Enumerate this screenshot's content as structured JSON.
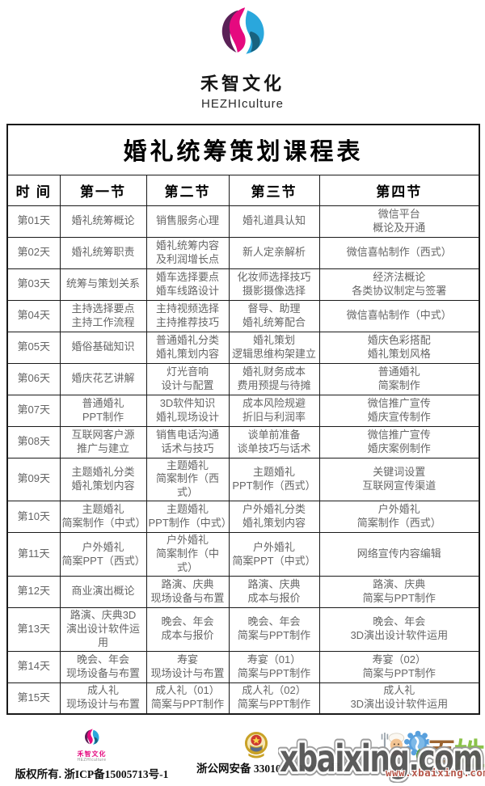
{
  "brand": {
    "name_cn": "禾智文化",
    "name_en": "HEZHIculture"
  },
  "table": {
    "title": "婚礼统筹策划课程表",
    "headers": [
      "时 间",
      "第一节",
      "第二节",
      "第三节",
      "第四节"
    ],
    "rows": [
      {
        "day": "第01天",
        "cells": [
          "婚礼统筹概论",
          "销售服务心理",
          "婚礼道具认知",
          "微信平台\n概论及开通"
        ]
      },
      {
        "day": "第02天",
        "cells": [
          "婚礼统筹职责",
          "婚礼统筹内容\n及利润增长点",
          "新人定亲解析",
          "微信喜帖制作（西式）"
        ]
      },
      {
        "day": "第03天",
        "cells": [
          "统筹与策划关系",
          "婚车选择要点\n婚车线路设计",
          "化妆师选择技巧\n摄影摄像选择",
          "经济法概论\n各类协议制定与签署"
        ]
      },
      {
        "day": "第04天",
        "cells": [
          "主持选择要点\n主持工作流程",
          "主持视频选择\n主持推荐技巧",
          "督导、助理\n婚礼统筹配合",
          "微信喜帖制作（中式）"
        ]
      },
      {
        "day": "第05天",
        "cells": [
          "婚俗基础知识",
          "普通婚礼分类\n婚礼策划内容",
          "婚礼策划\n逻辑思维构架建立",
          "婚庆色彩搭配\n婚礼策划风格"
        ]
      },
      {
        "day": "第06天",
        "cells": [
          "婚庆花艺讲解",
          "灯光音响\n设计与配置",
          "婚礼财务成本\n费用预提与待摊",
          "普通婚礼\n简案制作"
        ]
      },
      {
        "day": "第07天",
        "cells": [
          "普通婚礼\nPPT制作",
          "3D软件知识\n婚礼现场设计",
          "成本风险规避\n折旧与利润率",
          "微信推广宣传\n婚庆宣传制作"
        ]
      },
      {
        "day": "第08天",
        "cells": [
          "互联网客户源\n推广与建立",
          "销售电话沟通\n话术与技巧",
          "谈单前准备\n谈单技巧与话术",
          "微信推广宣传\n婚庆案例制作"
        ]
      },
      {
        "day": "第09天",
        "cells": [
          "主题婚礼分类\n婚礼策划内容",
          "主题婚礼\n简案制作（西式）",
          "主题婚礼\nPPT制作（西式）",
          "关键词设置\n互联网宣传渠道"
        ]
      },
      {
        "day": "第10天",
        "cells": [
          "主题婚礼\n简案制作（中式）",
          "主题婚礼\nPPT制作（中式）",
          "户外婚礼分类\n婚礼策划内容",
          "户外婚礼\n简案制作（西式）"
        ]
      },
      {
        "day": "第11天",
        "cells": [
          "户外婚礼\n简案PPT（西式）",
          "户外婚礼\n简案制作（中式）",
          "户外婚礼\n简案PPT（中式）",
          "网络宣传内容编辑"
        ]
      },
      {
        "day": "第12天",
        "cells": [
          "商业演出概论",
          "路演、庆典\n现场设备与布置",
          "路演、庆典\n成本与报价",
          "路演、庆典\n简案与PPT制作"
        ]
      },
      {
        "day": "第13天",
        "cells": [
          "路演、庆典3D\n演出设计软件运用",
          "晚会、年会\n成本与报价",
          "晚会、年会\n简案与PPT制作",
          "晚会、年会\n3D演出设计软件运用"
        ]
      },
      {
        "day": "第14天",
        "cells": [
          "晚会、年会\n现场设备与布置",
          "寿宴\n现场设计与布置",
          "寿宴（01）\n简案与PPT制作",
          "寿宴（02）\n简案与PPT制作"
        ]
      },
      {
        "day": "第15天",
        "cells": [
          "成人礼\n现场设计与布置",
          "成人礼（01）\n简案与PPT制作",
          "成人礼（02）\n简案与PPT制作",
          "成人礼\n3D演出设计软件运用"
        ]
      }
    ]
  },
  "footer": {
    "logo_cn": "禾智文化",
    "logo_en": "HEZHIculture",
    "copyright": "版权所有. 浙ICP备15005713号-1",
    "security": "浙公网安备 33010402020213号",
    "mascot_char_1": "百",
    "mascot_char_2": "姓"
  },
  "watermark": {
    "main": "xbaixing.com",
    "url": "www.xbaixing.com"
  },
  "icons": {
    "logo": "hezhi-swirl-logo",
    "badge": "police-security-badge",
    "chef": "chef-mascot",
    "rosette": "blue-rosette",
    "sprout": "green-figure"
  },
  "colors": {
    "brand_magenta": "#e5097f",
    "brand_blue": "#2aa7dc",
    "brand_purple": "#5a2157",
    "brand_teal": "#18627f",
    "text_gray": "#666666",
    "border_black": "#1a1a1a",
    "watermark_gray": "#565656",
    "watermark_url_red": "#b5574a"
  }
}
